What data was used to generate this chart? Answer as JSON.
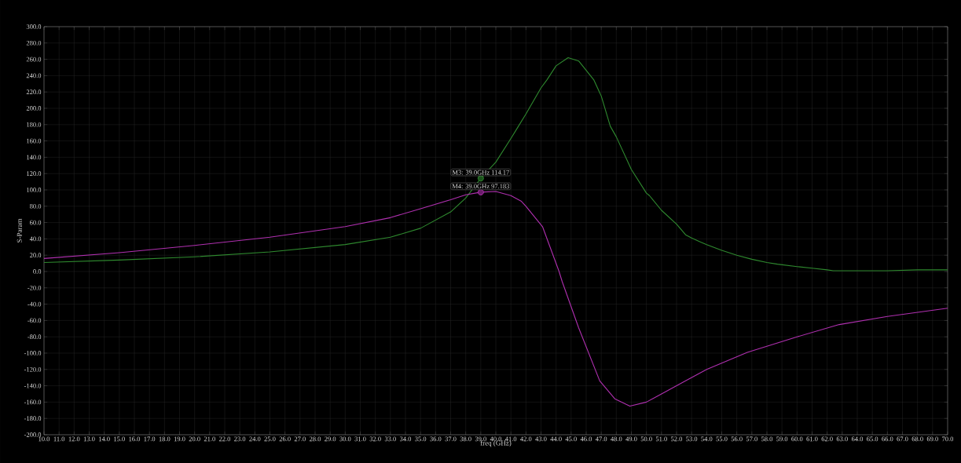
{
  "chart_data": {
    "type": "line",
    "xlabel": "freq (GHz)",
    "ylabel": "S-Param",
    "grid": true,
    "marker": "none",
    "line_style": "solid",
    "xlim": [
      10,
      70
    ],
    "ylim": [
      -200,
      300
    ],
    "xticks": [
      {
        "value": 10,
        "label": "10.0"
      },
      {
        "value": 11,
        "label": "11.0"
      },
      {
        "value": 12,
        "label": "12.0"
      },
      {
        "value": 13,
        "label": "13.0"
      },
      {
        "value": 14,
        "label": "14.0"
      },
      {
        "value": 15,
        "label": "15.0"
      },
      {
        "value": 16,
        "label": "16.0"
      },
      {
        "value": 17,
        "label": "17.0"
      },
      {
        "value": 18,
        "label": "18.0"
      },
      {
        "value": 19,
        "label": "19.0"
      },
      {
        "value": 20,
        "label": "20.0"
      },
      {
        "value": 21,
        "label": "21.0"
      },
      {
        "value": 22,
        "label": "22.0"
      },
      {
        "value": 23,
        "label": "23.0"
      },
      {
        "value": 24,
        "label": "24.0"
      },
      {
        "value": 25,
        "label": "25.0"
      },
      {
        "value": 26,
        "label": "26.0"
      },
      {
        "value": 27,
        "label": "27.0"
      },
      {
        "value": 28,
        "label": "28.0"
      },
      {
        "value": 29,
        "label": "29.0"
      },
      {
        "value": 30,
        "label": "30.0"
      },
      {
        "value": 31,
        "label": "31.0"
      },
      {
        "value": 32,
        "label": "32.0"
      },
      {
        "value": 33,
        "label": "33.0"
      },
      {
        "value": 34,
        "label": "34.0"
      },
      {
        "value": 35,
        "label": "35.0"
      },
      {
        "value": 36,
        "label": "36.0"
      },
      {
        "value": 37,
        "label": "37.0"
      },
      {
        "value": 38,
        "label": "38.0"
      },
      {
        "value": 39,
        "label": "39.0"
      },
      {
        "value": 40,
        "label": "40.0"
      },
      {
        "value": 41,
        "label": "41.0"
      },
      {
        "value": 42,
        "label": "42.0"
      },
      {
        "value": 43,
        "label": "43.0"
      },
      {
        "value": 44,
        "label": "44.0"
      },
      {
        "value": 45,
        "label": "45.0"
      },
      {
        "value": 46,
        "label": "46.0"
      },
      {
        "value": 47,
        "label": "47.0"
      },
      {
        "value": 48,
        "label": "48.0"
      },
      {
        "value": 49,
        "label": "49.0"
      },
      {
        "value": 50,
        "label": "50.0"
      },
      {
        "value": 51,
        "label": "51.0"
      },
      {
        "value": 52,
        "label": "52.0"
      },
      {
        "value": 53,
        "label": "53.0"
      },
      {
        "value": 54,
        "label": "54.0"
      },
      {
        "value": 55,
        "label": "55.0"
      },
      {
        "value": 56,
        "label": "56.0"
      },
      {
        "value": 57,
        "label": "57.0"
      },
      {
        "value": 58,
        "label": "58.0"
      },
      {
        "value": 59,
        "label": "59.0"
      },
      {
        "value": 60,
        "label": "60.0"
      },
      {
        "value": 61,
        "label": "61.0"
      },
      {
        "value": 62,
        "label": "62.0"
      },
      {
        "value": 63,
        "label": "63.0"
      },
      {
        "value": 64,
        "label": "64.0"
      },
      {
        "value": 65,
        "label": "65.0"
      },
      {
        "value": 66,
        "label": "66.0"
      },
      {
        "value": 67,
        "label": "67.0"
      },
      {
        "value": 68,
        "label": "68.0"
      },
      {
        "value": 69,
        "label": "69.0"
      },
      {
        "value": 70,
        "label": "70.0"
      }
    ],
    "yticks": [
      {
        "value": -200,
        "label": "-200.0"
      },
      {
        "value": -180,
        "label": "-180.0"
      },
      {
        "value": -160,
        "label": "-160.0"
      },
      {
        "value": -140,
        "label": "-140.0"
      },
      {
        "value": -120,
        "label": "-120.0"
      },
      {
        "value": -100,
        "label": "-100.0"
      },
      {
        "value": -80,
        "label": "-80.0"
      },
      {
        "value": -60,
        "label": "-60.0"
      },
      {
        "value": -40,
        "label": "-40.0"
      },
      {
        "value": -20,
        "label": "-20.0"
      },
      {
        "value": 0,
        "label": "0.0"
      },
      {
        "value": 20,
        "label": "20.0"
      },
      {
        "value": 40,
        "label": "40.0"
      },
      {
        "value": 60,
        "label": "60.0"
      },
      {
        "value": 80,
        "label": "80.0"
      },
      {
        "value": 100,
        "label": "100.0"
      },
      {
        "value": 120,
        "label": "120.0"
      },
      {
        "value": 140,
        "label": "140.0"
      },
      {
        "value": 160,
        "label": "160.0"
      },
      {
        "value": 180,
        "label": "180.0"
      },
      {
        "value": 200,
        "label": "200.0"
      },
      {
        "value": 220,
        "label": "220.0"
      },
      {
        "value": 240,
        "label": "240.0"
      },
      {
        "value": 260,
        "label": "260.0"
      },
      {
        "value": 280,
        "label": "280.0"
      },
      {
        "value": 300,
        "label": "300.0"
      }
    ],
    "series": [
      {
        "color": "#2f8a2f",
        "x": [
          10,
          15,
          20,
          25,
          30,
          33,
          35,
          37,
          38,
          39,
          40,
          41,
          41.5,
          42,
          43,
          43.4,
          44,
          44.8,
          45.5,
          46.5,
          47,
          47.6,
          48,
          49,
          50,
          50.2,
          51,
          52,
          52.6,
          53,
          53.6,
          54,
          55,
          56,
          57,
          58,
          58.7,
          60,
          61,
          62,
          62.4,
          64,
          66,
          68,
          70
        ],
        "values": [
          11,
          14,
          18,
          24,
          33,
          42,
          53,
          73,
          90,
          114.17,
          134,
          163,
          178,
          193,
          225,
          235,
          252,
          262,
          258,
          235,
          215,
          178,
          165,
          125,
          96,
          93,
          75,
          58,
          45,
          41,
          36,
          33,
          26,
          20,
          15,
          11,
          9,
          6,
          4,
          2,
          1,
          1,
          1,
          2,
          2
        ]
      },
      {
        "color": "#b030b0",
        "x": [
          10,
          15,
          20,
          25,
          30,
          33,
          35,
          37,
          38,
          39,
          40,
          41,
          41.7,
          42,
          43.1,
          44.2,
          44.4,
          45.5,
          46.9,
          47.9,
          48.9,
          50,
          51,
          52.6,
          54,
          56.7,
          60,
          62.8,
          66,
          70
        ],
        "values": [
          16,
          23,
          32,
          42,
          55,
          66,
          77,
          88,
          94,
          97.183,
          98,
          93,
          86,
          80,
          55,
          0,
          -12,
          -69,
          -134,
          -156,
          -165,
          -160,
          -150,
          -134,
          -120,
          -99,
          -80,
          -65,
          -55,
          -45
        ]
      }
    ],
    "annotations": [
      {
        "text": "M3: 39.0GHz 114.17",
        "x": 39,
        "y": 114.17
      },
      {
        "text": "M4: 39.0GHz 97.183",
        "x": 39,
        "y": 97.183
      }
    ]
  }
}
